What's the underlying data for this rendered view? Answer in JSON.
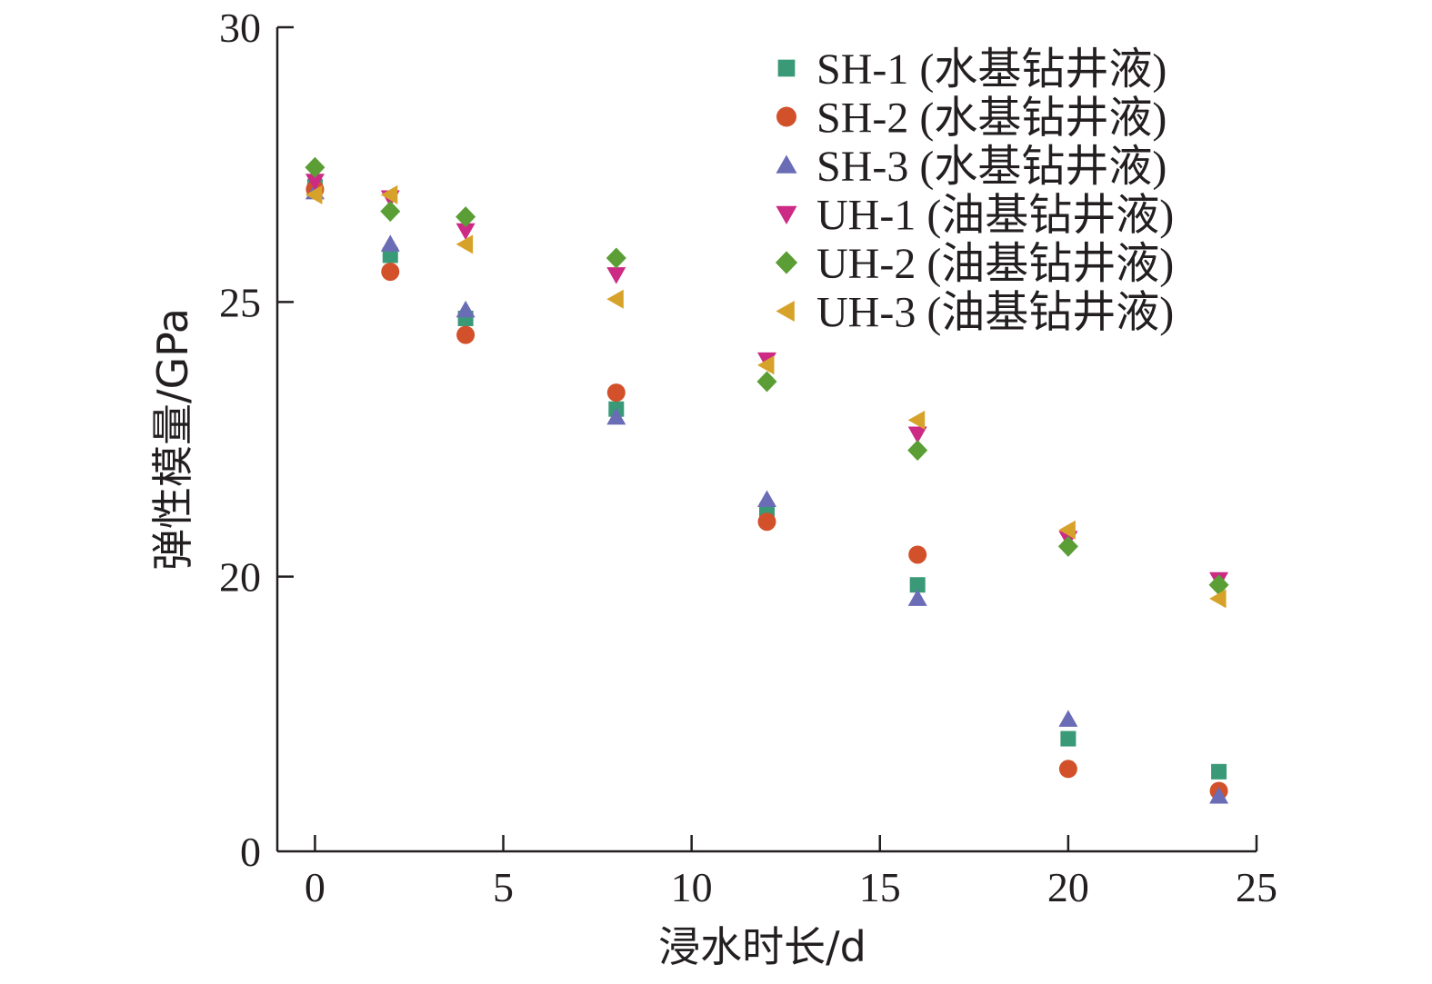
{
  "chart_data": {
    "type": "scatter",
    "xlabel": "浸水时长/d",
    "ylabel": "弹性模量/GPa",
    "xlim": [
      -1,
      25
    ],
    "ylim": [
      15,
      30
    ],
    "x_ticks": [
      0,
      5,
      10,
      15,
      20,
      25
    ],
    "y_ticks": [
      20,
      25,
      30
    ],
    "y_tick_labels": {
      "origin": "0"
    },
    "legend_position": "top-right",
    "series": [
      {
        "name": "SH-1 (水基钻井液)",
        "marker": "square",
        "color": "#3a9a77",
        "points": [
          [
            0,
            27.1
          ],
          [
            2,
            25.85
          ],
          [
            4,
            24.7
          ],
          [
            8,
            23.05
          ],
          [
            12,
            21.2
          ],
          [
            16,
            19.85
          ],
          [
            20,
            17.05
          ],
          [
            24,
            16.45
          ]
        ]
      },
      {
        "name": "SH-2 (水基钻井液)",
        "marker": "circle",
        "color": "#d2512a",
        "points": [
          [
            0,
            27.05
          ],
          [
            2,
            25.55
          ],
          [
            4,
            24.4
          ],
          [
            8,
            23.35
          ],
          [
            12,
            21.0
          ],
          [
            16,
            20.4
          ],
          [
            20,
            16.5
          ],
          [
            24,
            16.1
          ]
        ]
      },
      {
        "name": "SH-3 (水基钻井液)",
        "marker": "triangle-up",
        "color": "#6a6cb6",
        "points": [
          [
            0,
            27.0
          ],
          [
            2,
            26.05
          ],
          [
            4,
            24.85
          ],
          [
            8,
            22.9
          ],
          [
            12,
            21.4
          ],
          [
            16,
            19.6
          ],
          [
            20,
            17.4
          ],
          [
            24,
            16.0
          ]
        ]
      },
      {
        "name": "UH-1 (油基钻井液)",
        "marker": "triangle-down",
        "color": "#cc2a84",
        "points": [
          [
            0,
            27.2
          ],
          [
            2,
            26.9
          ],
          [
            4,
            26.3
          ],
          [
            8,
            25.5
          ],
          [
            12,
            23.95
          ],
          [
            16,
            22.6
          ],
          [
            20,
            20.7
          ],
          [
            24,
            19.95
          ]
        ]
      },
      {
        "name": "UH-2 (油基钻井液)",
        "marker": "diamond",
        "color": "#5a9e35",
        "points": [
          [
            0,
            27.45
          ],
          [
            2,
            26.65
          ],
          [
            4,
            26.55
          ],
          [
            8,
            25.8
          ],
          [
            12,
            23.55
          ],
          [
            16,
            22.3
          ],
          [
            20,
            20.55
          ],
          [
            24,
            19.85
          ]
        ]
      },
      {
        "name": "UH-3 (油基钻井液)",
        "marker": "triangle-left",
        "color": "#d7a229",
        "points": [
          [
            0,
            26.95
          ],
          [
            2,
            26.95
          ],
          [
            4,
            26.05
          ],
          [
            8,
            25.05
          ],
          [
            12,
            23.85
          ],
          [
            16,
            22.85
          ],
          [
            20,
            20.85
          ],
          [
            24,
            19.6
          ]
        ]
      }
    ]
  }
}
